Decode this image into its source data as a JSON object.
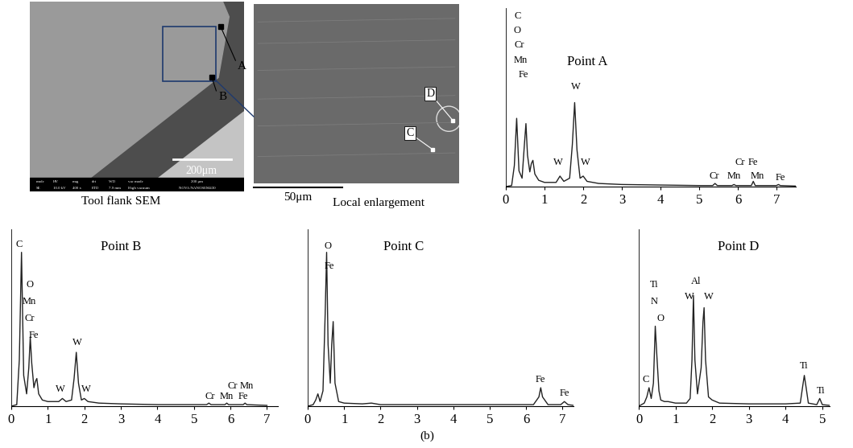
{
  "chart_data": [
    {
      "type": "line",
      "title": "Point A",
      "color": "#222222",
      "tick_labels": "x",
      "x": [
        0,
        0.15,
        0.22,
        0.28,
        0.34,
        0.42,
        0.48,
        0.52,
        0.56,
        0.62,
        0.66,
        0.7,
        0.75,
        0.85,
        1.0,
        1.3,
        1.4,
        1.5,
        1.65,
        1.72,
        1.78,
        1.84,
        1.92,
        2.0,
        2.1,
        2.4,
        3,
        4,
        5,
        5.35,
        5.41,
        5.47,
        5.85,
        5.9,
        5.95,
        6.35,
        6.4,
        6.45,
        7.0,
        7.05,
        7.1,
        7.5
      ],
      "values": [
        0,
        1,
        20,
        65,
        15,
        8,
        40,
        60,
        30,
        14,
        22,
        25,
        12,
        6,
        4,
        4,
        10,
        5,
        8,
        40,
        80,
        35,
        8,
        10,
        5,
        3,
        2,
        1.5,
        1,
        1,
        3,
        1,
        1,
        2,
        1,
        1,
        5,
        1,
        1,
        2,
        1,
        0.5
      ],
      "xlim": [
        0,
        7.5
      ],
      "xticks": [
        0,
        1,
        2,
        3,
        4,
        5,
        6,
        7
      ],
      "ylim": [
        0,
        170
      ],
      "yticks": [],
      "annotations": [
        {
          "text": "C",
          "x": 0.3,
          "y": 158
        },
        {
          "text": "O",
          "x": 0.3,
          "y": 144
        },
        {
          "text": "Cr",
          "x": 0.35,
          "y": 130
        },
        {
          "text": "Mn",
          "x": 0.38,
          "y": 116
        },
        {
          "text": "Fe",
          "x": 0.45,
          "y": 102
        },
        {
          "text": "W",
          "x": 1.8,
          "y": 90
        },
        {
          "text": "W",
          "x": 1.35,
          "y": 18
        },
        {
          "text": "W",
          "x": 2.05,
          "y": 18
        },
        {
          "text": "Cr",
          "x": 6.05,
          "y": 18
        },
        {
          "text": "Fe",
          "x": 6.4,
          "y": 18
        },
        {
          "text": "Cr",
          "x": 5.4,
          "y": 5
        },
        {
          "text": "Mn",
          "x": 5.9,
          "y": 5
        },
        {
          "text": "Mn",
          "x": 6.5,
          "y": 5
        },
        {
          "text": "Fe",
          "x": 7.1,
          "y": 4
        }
      ]
    },
    {
      "type": "line",
      "title": "Point B",
      "color": "#222222",
      "tick_labels": "x",
      "x": [
        0,
        0.15,
        0.22,
        0.28,
        0.34,
        0.42,
        0.48,
        0.52,
        0.56,
        0.62,
        0.66,
        0.7,
        0.75,
        0.85,
        1.0,
        1.3,
        1.4,
        1.5,
        1.65,
        1.72,
        1.78,
        1.84,
        1.92,
        2.0,
        2.1,
        2.4,
        3,
        4,
        5,
        5.35,
        5.41,
        5.47,
        5.85,
        5.9,
        5.95,
        6.35,
        6.4,
        6.45,
        7.0
      ],
      "values": [
        0,
        1,
        30,
        100,
        20,
        8,
        25,
        45,
        28,
        12,
        16,
        18,
        8,
        4,
        3,
        3,
        5,
        3,
        4,
        18,
        35,
        15,
        4,
        5,
        3,
        2,
        1.5,
        1,
        1,
        1,
        2,
        1,
        1,
        2,
        1,
        1,
        2,
        1,
        0.5
      ],
      "xlim": [
        0,
        7.3
      ],
      "xticks": [
        0,
        1,
        2,
        3,
        4,
        5,
        6,
        7
      ],
      "ylim": [
        0,
        115
      ],
      "yticks": [],
      "annotations": [
        {
          "text": "C",
          "x": 0.22,
          "y": 102
        },
        {
          "text": "O",
          "x": 0.5,
          "y": 76
        },
        {
          "text": "Mn",
          "x": 0.5,
          "y": 65
        },
        {
          "text": "Cr",
          "x": 0.5,
          "y": 54
        },
        {
          "text": "Fe",
          "x": 0.62,
          "y": 43
        },
        {
          "text": "W",
          "x": 1.8,
          "y": 38
        },
        {
          "text": "W",
          "x": 1.35,
          "y": 8
        },
        {
          "text": "W",
          "x": 2.05,
          "y": 8
        },
        {
          "text": "Cr",
          "x": 6.05,
          "y": 10
        },
        {
          "text": "Mn",
          "x": 6.45,
          "y": 10
        },
        {
          "text": "Cr",
          "x": 5.45,
          "y": 3
        },
        {
          "text": "Mn",
          "x": 5.9,
          "y": 3
        },
        {
          "text": "Fe",
          "x": 6.35,
          "y": 3
        }
      ]
    },
    {
      "type": "line",
      "title": "Point C",
      "color": "#222222",
      "tick_labels": "x",
      "x": [
        0,
        0.15,
        0.22,
        0.28,
        0.34,
        0.42,
        0.48,
        0.52,
        0.56,
        0.62,
        0.66,
        0.7,
        0.75,
        0.85,
        1.0,
        1.5,
        1.75,
        2.0,
        3,
        4,
        5,
        6.2,
        6.35,
        6.4,
        6.45,
        6.6,
        6.95,
        7.05,
        7.15,
        7.3
      ],
      "values": [
        0,
        1,
        4,
        8,
        3,
        10,
        60,
        100,
        40,
        15,
        40,
        55,
        15,
        3,
        2,
        1.5,
        2,
        1,
        1,
        1,
        1,
        1,
        6,
        12,
        6,
        1,
        1,
        3,
        1,
        0.5
      ],
      "xlim": [
        0,
        7.3
      ],
      "xticks": [
        0,
        1,
        2,
        3,
        4,
        5,
        6,
        7
      ],
      "ylim": [
        0,
        115
      ],
      "yticks": [],
      "annotations": [
        {
          "text": "O",
          "x": 0.55,
          "y": 101
        },
        {
          "text": "Fe",
          "x": 0.6,
          "y": 88
        },
        {
          "text": "Fe",
          "x": 6.4,
          "y": 14
        },
        {
          "text": "Fe",
          "x": 7.05,
          "y": 5
        }
      ]
    },
    {
      "type": "line",
      "title": "Point D",
      "color": "#222222",
      "tick_labels": "x",
      "x": [
        0,
        0.15,
        0.22,
        0.28,
        0.34,
        0.4,
        0.45,
        0.5,
        0.55,
        0.6,
        0.7,
        0.8,
        1.0,
        1.3,
        1.4,
        1.45,
        1.49,
        1.53,
        1.6,
        1.7,
        1.75,
        1.78,
        1.82,
        1.9,
        2.0,
        2.2,
        3,
        4,
        4.4,
        4.46,
        4.51,
        4.56,
        4.62,
        4.85,
        4.93,
        5.0,
        5.2
      ],
      "values": [
        0,
        2,
        6,
        12,
        5,
        15,
        52,
        30,
        10,
        4,
        3,
        3,
        2,
        2,
        5,
        30,
        72,
        30,
        8,
        25,
        55,
        64,
        30,
        6,
        4,
        2,
        1.5,
        1.5,
        2,
        12,
        20,
        12,
        2,
        1,
        5,
        1,
        0.5
      ],
      "xlim": [
        0,
        5.2
      ],
      "xticks": [
        0,
        1,
        2,
        3,
        4,
        5
      ],
      "ylim": [
        0,
        115
      ],
      "yticks": [],
      "annotations": [
        {
          "text": "Ti",
          "x": 0.42,
          "y": 76
        },
        {
          "text": "N",
          "x": 0.42,
          "y": 65
        },
        {
          "text": "O",
          "x": 0.6,
          "y": 54
        },
        {
          "text": "C",
          "x": 0.2,
          "y": 14
        },
        {
          "text": "Al",
          "x": 1.55,
          "y": 78
        },
        {
          "text": "W",
          "x": 1.38,
          "y": 68
        },
        {
          "text": "W",
          "x": 1.9,
          "y": 68
        },
        {
          "text": "Ti",
          "x": 4.5,
          "y": 23
        },
        {
          "text": "Ti",
          "x": 4.97,
          "y": 7
        }
      ]
    }
  ],
  "images": [
    {
      "caption": "Tool flank SEM",
      "scale_bar": "200μm",
      "markers": [
        "A",
        "B"
      ],
      "info_bar": {
        "headers": [
          "mode",
          "HV",
          "mag",
          "det",
          "WD",
          "vac mode"
        ],
        "values": [
          "SE",
          "10.0 kV",
          "400 x",
          "ETD",
          "7.9 mm",
          "High vacuum"
        ],
        "scale": "200 μm",
        "instrument": "NOVA NANOSEM430"
      }
    },
    {
      "caption": "Local enlargement",
      "scale_bar": "50μm",
      "markers": [
        "D",
        "C"
      ]
    }
  ],
  "figure_label": "(b)"
}
